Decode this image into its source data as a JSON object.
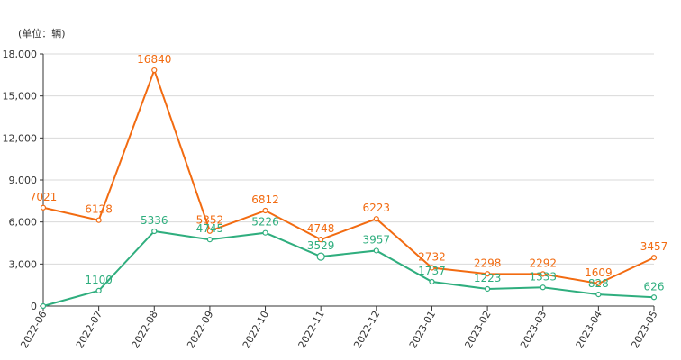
{
  "chart_data": {
    "type": "line",
    "unit_label": "(单位：辆)",
    "categories": [
      "2022-06",
      "2022-07",
      "2022-08",
      "2022-09",
      "2022-10",
      "2022-11",
      "2022-12",
      "2023-01",
      "2023-02",
      "2023-03",
      "2023-04",
      "2023-05"
    ],
    "y_ticks": [
      "0",
      "3,000",
      "6,000",
      "9,000",
      "12,000",
      "15,000",
      "18,000"
    ],
    "ylim": [
      0,
      18000
    ],
    "grid": true,
    "series": [
      {
        "color": "#f26b11",
        "values": [
          7021,
          6128,
          16840,
          5352,
          6812,
          4748,
          6223,
          2732,
          2298,
          2292,
          1609,
          3457
        ]
      },
      {
        "color": "#2fae7e",
        "values": [
          0,
          1100,
          5336,
          4745,
          5226,
          3529,
          3957,
          1737,
          1223,
          1333,
          828,
          626
        ]
      }
    ],
    "series_labels": [
      [
        "7021",
        "6128",
        "16840",
        "5352",
        "6812",
        "4748",
        "6223",
        "2732",
        "2298",
        "2292",
        "1609",
        "3457"
      ],
      [
        "",
        "1100",
        "5336",
        "4745",
        "5226",
        "3529",
        "3957",
        "1737",
        "1223",
        "1333",
        "828",
        "626"
      ]
    ]
  }
}
